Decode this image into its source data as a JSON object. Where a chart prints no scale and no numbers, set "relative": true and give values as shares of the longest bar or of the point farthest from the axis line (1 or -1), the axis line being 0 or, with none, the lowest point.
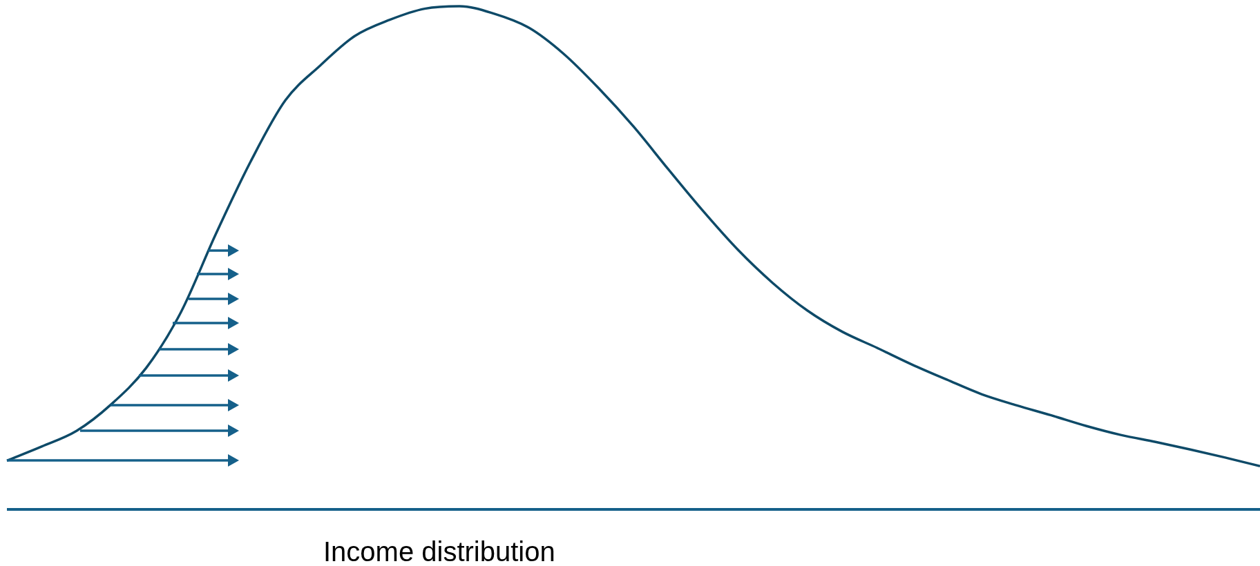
{
  "chart_data": {
    "type": "line",
    "relative": true,
    "xlabel": "Income distribution",
    "marker": "none",
    "line_style": "solid",
    "legend": false,
    "categories": [
      null,
      null,
      null,
      null,
      null,
      null,
      null,
      null,
      null,
      null,
      null,
      null,
      null,
      null,
      null,
      null,
      null,
      null,
      null,
      null,
      null,
      null,
      null,
      null,
      null,
      null,
      null,
      null,
      null,
      null,
      null,
      null,
      null,
      null,
      null,
      null,
      null
    ],
    "series": [
      {
        "color": "#0e4a68",
        "values": [
          0.097,
          0.125,
          0.156,
          0.209,
          0.281,
          0.392,
          0.547,
          0.691,
          0.813,
          0.882,
          0.941,
          0.973,
          0.995,
          1,
          0.985,
          0.957,
          0.905,
          0.837,
          0.761,
          0.676,
          0.593,
          0.516,
          0.45,
          0.395,
          0.353,
          0.321,
          0.288,
          0.258,
          0.229,
          0.207,
          0.187,
          0.166,
          0.148,
          0.134,
          0.119,
          0.103,
          0.086
        ]
      }
    ]
  }
}
